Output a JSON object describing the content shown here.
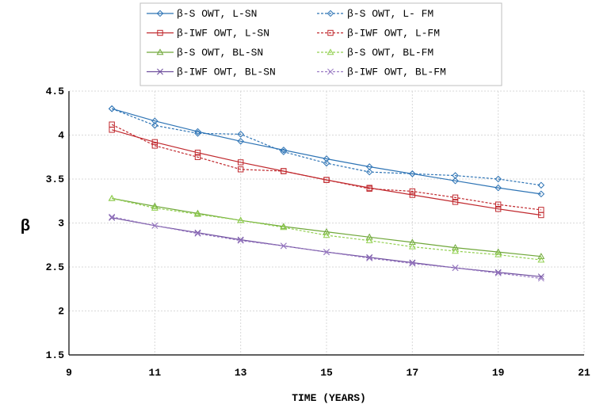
{
  "chart_data": {
    "type": "line",
    "title": "",
    "xlabel": "TIME (YEARS)",
    "ylabel": "β",
    "xlim": [
      9,
      21
    ],
    "ylim": [
      1.5,
      4.5
    ],
    "xticks": [
      9,
      11,
      13,
      15,
      17,
      19,
      21
    ],
    "yticks": [
      1.5,
      2,
      2.5,
      3,
      3.5,
      4,
      4.5
    ],
    "xtick_labels": [
      "9",
      "11",
      "13",
      "15",
      "17",
      "19",
      "21"
    ],
    "ytick_labels": [
      "1.5",
      "2",
      "2.5",
      "3",
      "3.5",
      "4",
      "4.5"
    ],
    "grid": true,
    "legend_position": "top-center",
    "x": [
      10,
      11,
      12,
      13,
      14,
      15,
      16,
      17,
      18,
      19,
      20
    ],
    "series": [
      {
        "name": "β-S OWT, L-SN",
        "color": "#2E74B5",
        "dash": false,
        "marker": "diamond",
        "values": [
          4.3,
          4.16,
          4.04,
          3.93,
          3.83,
          3.73,
          3.64,
          3.56,
          3.48,
          3.4,
          3.33
        ]
      },
      {
        "name": "β-S OWT, L- FM",
        "color": "#2E74B5",
        "dash": true,
        "marker": "diamond",
        "values": [
          4.3,
          4.11,
          4.02,
          4.01,
          3.81,
          3.68,
          3.58,
          3.56,
          3.54,
          3.5,
          3.43
        ]
      },
      {
        "name": "β-IWF OWT, L-SN",
        "color": "#C0282D",
        "dash": false,
        "marker": "square",
        "values": [
          4.06,
          3.92,
          3.8,
          3.69,
          3.59,
          3.49,
          3.4,
          3.32,
          3.24,
          3.16,
          3.09
        ]
      },
      {
        "name": "β-IWF OWT, L-FM",
        "color": "#C0282D",
        "dash": true,
        "marker": "square",
        "values": [
          4.12,
          3.88,
          3.75,
          3.61,
          3.59,
          3.49,
          3.39,
          3.36,
          3.29,
          3.21,
          3.15
        ]
      },
      {
        "name": "β-S OWT, BL-SN",
        "color": "#70A83A",
        "dash": false,
        "marker": "triangle",
        "values": [
          3.28,
          3.19,
          3.11,
          3.03,
          2.96,
          2.9,
          2.84,
          2.78,
          2.72,
          2.67,
          2.62
        ]
      },
      {
        "name": "β-S OWT, BL-FM",
        "color": "#92D050",
        "dash": true,
        "marker": "triangle",
        "values": [
          3.28,
          3.17,
          3.1,
          3.03,
          2.95,
          2.86,
          2.8,
          2.73,
          2.68,
          2.64,
          2.58
        ]
      },
      {
        "name": "β-IWF OWT, BL-SN",
        "color": "#6F4F9E",
        "dash": false,
        "marker": "x",
        "values": [
          3.06,
          2.97,
          2.89,
          2.81,
          2.74,
          2.67,
          2.61,
          2.55,
          2.49,
          2.44,
          2.39
        ]
      },
      {
        "name": "β-IWF OWT, BL-FM",
        "color": "#9B7CC4",
        "dash": true,
        "marker": "x",
        "values": [
          3.07,
          2.97,
          2.88,
          2.8,
          2.74,
          2.67,
          2.6,
          2.54,
          2.49,
          2.43,
          2.37
        ]
      }
    ]
  }
}
